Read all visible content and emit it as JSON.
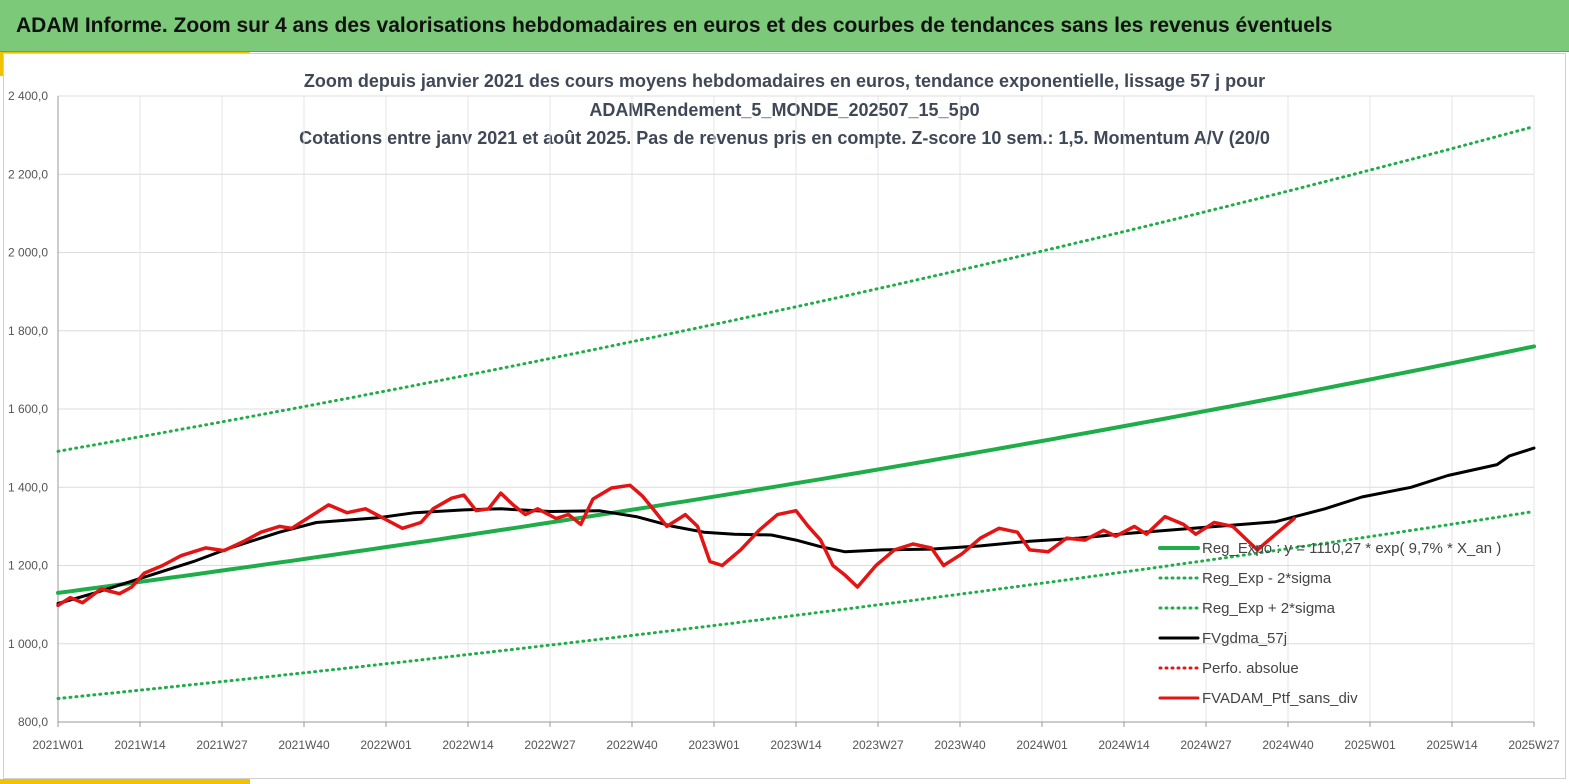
{
  "header": {
    "title": "ADAM Informe. Zoom sur 4 ans des valorisations hebdomadaires en euros et des courbes de tendances sans les revenus éventuels"
  },
  "colors": {
    "banner": "#7dc97a",
    "accent": "#f2c200",
    "regression": "#1fad4a",
    "smooth": "#000000",
    "portfolio": "#e41414"
  },
  "chart_data": {
    "type": "line",
    "title_lines": [
      "Zoom depuis janvier 2021 des cours moyens hebdomadaires  en euros, tendance exponentielle, lissage 57 j pour",
      "ADAMRendement_5_MONDE_202507_15_5p0",
      "Cotations entre janv 2021 et août 2025. Pas de revenus pris en compte. Z-score 10 sem.: 1,5. Momentum A/V (20/0"
    ],
    "x_tick_labels": [
      "2021W01",
      "2021W14",
      "2021W27",
      "2021W40",
      "2022W01",
      "2022W14",
      "2022W27",
      "2022W40",
      "2023W01",
      "2023W14",
      "2023W27",
      "2023W40",
      "2024W01",
      "2024W14",
      "2024W27",
      "2024W40",
      "2025W01",
      "2025W14",
      "2025W27"
    ],
    "y_tick_labels": [
      "800,0",
      "1 000,0",
      "1 200,0",
      "1 400,0",
      "1 600,0",
      "1 800,0",
      "2 000,0",
      "2 200,0",
      "2 400,0"
    ],
    "ylim": [
      800,
      2400
    ],
    "x_weeks_total": 240,
    "grid": true,
    "legend_position": "bottom-right",
    "series": [
      {
        "name": "Reg_Expo : y = 1110,27 * exp( 9,7% *  X_an )",
        "style": "solid",
        "color": "#1fad4a",
        "points": [
          [
            0,
            1130
          ],
          [
            240,
            1760
          ]
        ]
      },
      {
        "name": "Reg_Exp - 2*sigma",
        "style": "dotted",
        "color": "#1fad4a",
        "points": [
          [
            0,
            860
          ],
          [
            240,
            1338
          ]
        ]
      },
      {
        "name": "Reg_Exp + 2*sigma",
        "style": "dotted",
        "color": "#1fad4a",
        "points": [
          [
            0,
            1492
          ],
          [
            240,
            2322
          ]
        ]
      },
      {
        "name": "FVgdma_57j",
        "style": "solid",
        "color": "#000000",
        "points": [
          [
            0,
            1103
          ],
          [
            6,
            1130
          ],
          [
            13,
            1165
          ],
          [
            22,
            1210
          ],
          [
            28,
            1245
          ],
          [
            36,
            1285
          ],
          [
            42,
            1310
          ],
          [
            52,
            1322
          ],
          [
            58,
            1335
          ],
          [
            66,
            1342
          ],
          [
            72,
            1345
          ],
          [
            80,
            1338
          ],
          [
            88,
            1340
          ],
          [
            94,
            1325
          ],
          [
            100,
            1300
          ],
          [
            105,
            1285
          ],
          [
            110,
            1280
          ],
          [
            116,
            1278
          ],
          [
            120,
            1265
          ],
          [
            124,
            1248
          ],
          [
            128,
            1235
          ],
          [
            134,
            1240
          ],
          [
            142,
            1242
          ],
          [
            150,
            1250
          ],
          [
            158,
            1262
          ],
          [
            166,
            1270
          ],
          [
            174,
            1282
          ],
          [
            182,
            1292
          ],
          [
            190,
            1302
          ],
          [
            198,
            1312
          ],
          [
            206,
            1345
          ],
          [
            212,
            1375
          ],
          [
            220,
            1400
          ],
          [
            226,
            1430
          ],
          [
            234,
            1458
          ],
          [
            236,
            1480
          ],
          [
            240,
            1500
          ]
        ]
      },
      {
        "name": "Perfo. absolue",
        "style": "dotted",
        "color": "#e41414",
        "points": []
      },
      {
        "name": "FVADAM_Ptf_sans_div",
        "style": "solid",
        "color": "#e41414",
        "points": [
          [
            0,
            1098
          ],
          [
            2,
            1118
          ],
          [
            4,
            1105
          ],
          [
            7,
            1140
          ],
          [
            10,
            1128
          ],
          [
            12,
            1145
          ],
          [
            14,
            1180
          ],
          [
            17,
            1200
          ],
          [
            20,
            1225
          ],
          [
            24,
            1245
          ],
          [
            27,
            1238
          ],
          [
            30,
            1260
          ],
          [
            33,
            1285
          ],
          [
            36,
            1300
          ],
          [
            38,
            1295
          ],
          [
            41,
            1325
          ],
          [
            44,
            1355
          ],
          [
            47,
            1335
          ],
          [
            50,
            1345
          ],
          [
            53,
            1320
          ],
          [
            56,
            1295
          ],
          [
            59,
            1310
          ],
          [
            61,
            1345
          ],
          [
            64,
            1372
          ],
          [
            66,
            1380
          ],
          [
            68,
            1340
          ],
          [
            70,
            1345
          ],
          [
            72,
            1385
          ],
          [
            74,
            1355
          ],
          [
            76,
            1330
          ],
          [
            78,
            1345
          ],
          [
            81,
            1320
          ],
          [
            83,
            1330
          ],
          [
            85,
            1305
          ],
          [
            87,
            1370
          ],
          [
            90,
            1398
          ],
          [
            93,
            1405
          ],
          [
            95,
            1378
          ],
          [
            97,
            1340
          ],
          [
            99,
            1300
          ],
          [
            102,
            1330
          ],
          [
            104,
            1300
          ],
          [
            106,
            1210
          ],
          [
            108,
            1200
          ],
          [
            111,
            1240
          ],
          [
            114,
            1290
          ],
          [
            117,
            1330
          ],
          [
            120,
            1340
          ],
          [
            122,
            1300
          ],
          [
            124,
            1265
          ],
          [
            126,
            1200
          ],
          [
            128,
            1175
          ],
          [
            130,
            1145
          ],
          [
            133,
            1200
          ],
          [
            136,
            1240
          ],
          [
            139,
            1255
          ],
          [
            142,
            1245
          ],
          [
            144,
            1200
          ],
          [
            147,
            1230
          ],
          [
            150,
            1270
          ],
          [
            153,
            1295
          ],
          [
            156,
            1285
          ],
          [
            158,
            1240
          ],
          [
            161,
            1235
          ],
          [
            164,
            1270
          ],
          [
            167,
            1265
          ],
          [
            170,
            1290
          ],
          [
            172,
            1275
          ],
          [
            175,
            1300
          ],
          [
            177,
            1280
          ],
          [
            180,
            1325
          ],
          [
            183,
            1305
          ],
          [
            185,
            1280
          ],
          [
            188,
            1310
          ],
          [
            191,
            1300
          ],
          [
            193,
            1270
          ],
          [
            195,
            1240
          ],
          [
            198,
            1280
          ],
          [
            201,
            1320
          ]
        ]
      }
    ]
  }
}
